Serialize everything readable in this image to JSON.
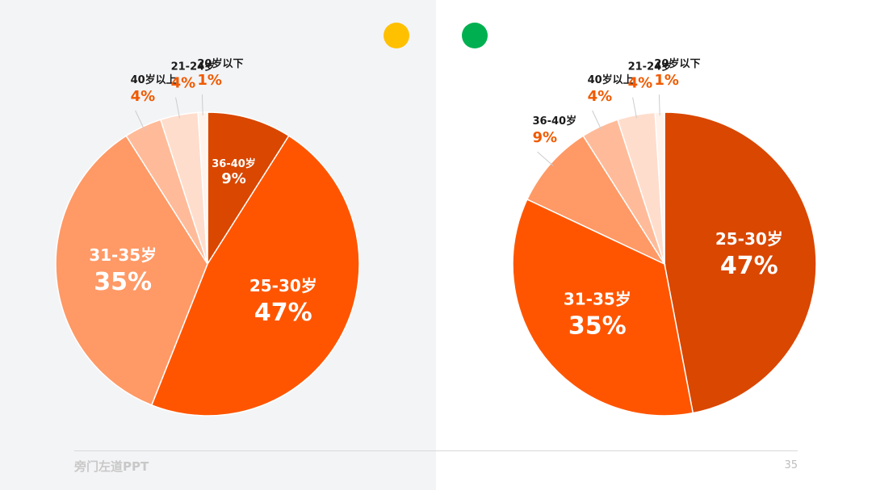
{
  "colors": {
    "yellow_dot": "#ffc000",
    "green_dot": "#00b050",
    "label_orange": "#f05a00",
    "label_dark": "#1a1a1a",
    "leader_line": "#cccccc",
    "left_panel_bg": "#f3f4f6"
  },
  "chart_data": [
    {
      "type": "pie",
      "start_angle_deg": 0,
      "direction": "clockwise",
      "slices": [
        {
          "label": "36-40岁",
          "pct_label": "9%",
          "value": 9,
          "color": "#d94700",
          "label_mode": "inside-small"
        },
        {
          "label": "25-30岁",
          "pct_label": "47%",
          "value": 47,
          "color": "#ff5500",
          "label_mode": "inside"
        },
        {
          "label": "31-35岁",
          "pct_label": "35%",
          "value": 35,
          "color": "#ff9966",
          "label_mode": "inside"
        },
        {
          "label": "40岁以上",
          "pct_label": "4%",
          "value": 4,
          "color": "#ffbb99",
          "label_mode": "outside"
        },
        {
          "label": "21-24岁",
          "pct_label": "4%",
          "value": 4,
          "color": "#ffddcc",
          "label_mode": "outside"
        },
        {
          "label": "20岁以下",
          "pct_label": "1%",
          "value": 1,
          "color": "#fff3ec",
          "label_mode": "outside"
        }
      ]
    },
    {
      "type": "pie",
      "start_angle_deg": 0,
      "direction": "clockwise",
      "slices": [
        {
          "label": "25-30岁",
          "pct_label": "47%",
          "value": 47,
          "color": "#d94700",
          "label_mode": "inside"
        },
        {
          "label": "31-35岁",
          "pct_label": "35%",
          "value": 35,
          "color": "#ff5500",
          "label_mode": "inside"
        },
        {
          "label": "36-40岁",
          "pct_label": "9%",
          "value": 9,
          "color": "#ff9966",
          "label_mode": "outside"
        },
        {
          "label": "40岁以上",
          "pct_label": "4%",
          "value": 4,
          "color": "#ffbb99",
          "label_mode": "outside"
        },
        {
          "label": "21-24岁",
          "pct_label": "4%",
          "value": 4,
          "color": "#ffddcc",
          "label_mode": "outside"
        },
        {
          "label": "20岁以下",
          "pct_label": "1%",
          "value": 1,
          "color": "#fff3ec",
          "label_mode": "outside"
        }
      ]
    }
  ],
  "footer": {
    "brand": "旁门左道PPT",
    "page_number": "35"
  }
}
